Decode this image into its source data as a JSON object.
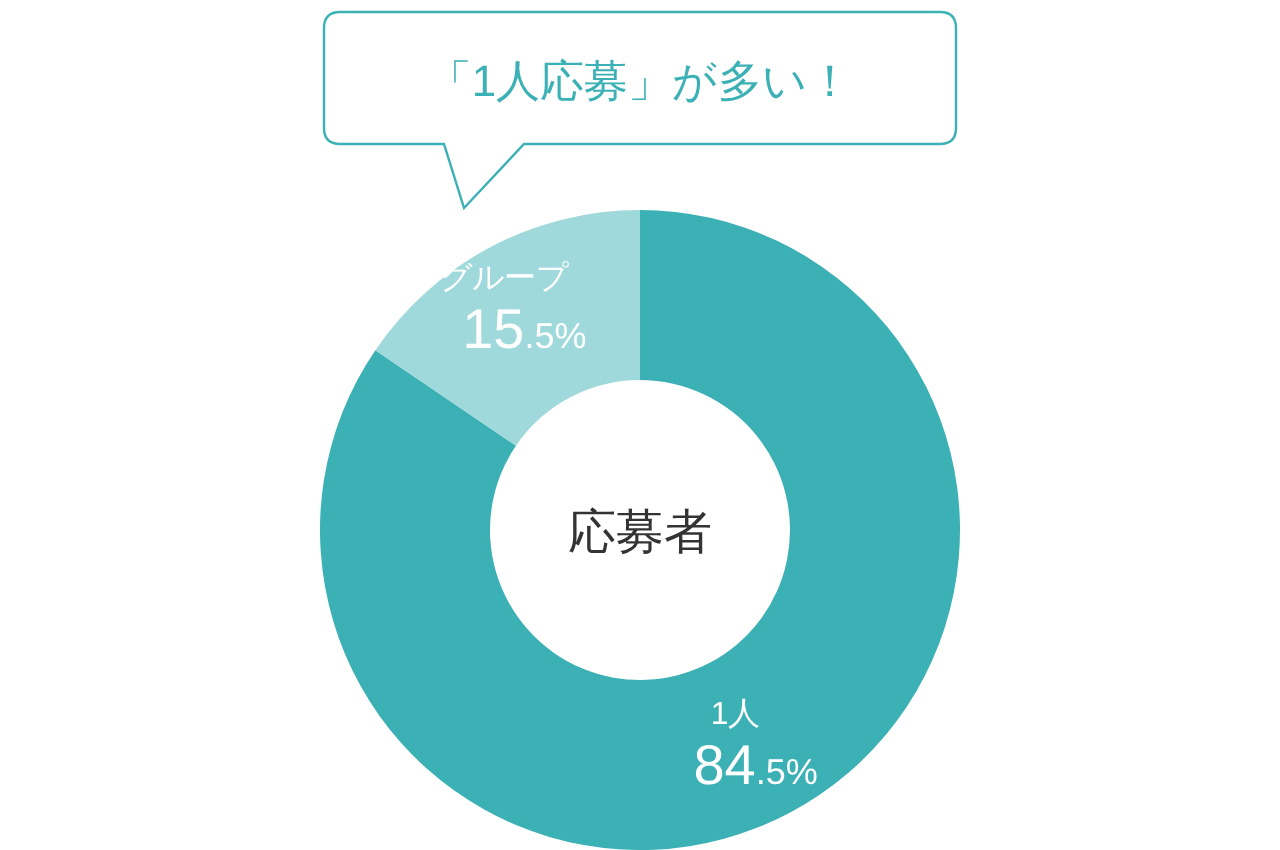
{
  "chart_data": {
    "type": "donut",
    "title": "「1人応募」が多い！",
    "categories": [
      "1人",
      "グループ"
    ],
    "values": [
      84.5,
      15.5
    ],
    "colors": [
      "#3bb0b5",
      "#a0d9db"
    ],
    "value_labels": [
      "84.5%",
      "15.5%"
    ],
    "annotations": [
      "応募者"
    ]
  }
}
